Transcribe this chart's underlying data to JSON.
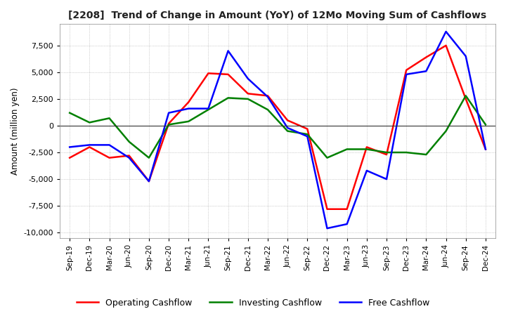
{
  "title": "[2208]  Trend of Change in Amount (YoY) of 12Mo Moving Sum of Cashflows",
  "ylabel": "Amount (million yen)",
  "ylim": [
    -10500,
    9500
  ],
  "yticks": [
    -10000,
    -7500,
    -5000,
    -2500,
    0,
    2500,
    5000,
    7500
  ],
  "background_color": "#ffffff",
  "grid_color": "#aaaaaa",
  "x_labels": [
    "Sep-19",
    "Dec-19",
    "Mar-20",
    "Jun-20",
    "Sep-20",
    "Dec-20",
    "Mar-21",
    "Jun-21",
    "Sep-21",
    "Dec-21",
    "Mar-22",
    "Jun-22",
    "Sep-22",
    "Dec-22",
    "Mar-23",
    "Jun-23",
    "Sep-23",
    "Dec-23",
    "Mar-24",
    "Jun-24",
    "Sep-24",
    "Dec-24"
  ],
  "operating": [
    -3000,
    -2000,
    -3000,
    -2800,
    -5200,
    200,
    2200,
    4900,
    4800,
    3000,
    2800,
    500,
    -300,
    -7800,
    -7800,
    -2000,
    -2700,
    5200,
    6400,
    7500,
    2500,
    -2200
  ],
  "investing": [
    1200,
    300,
    700,
    -1500,
    -3000,
    100,
    400,
    1500,
    2600,
    2500,
    1500,
    -500,
    -800,
    -3000,
    -2200,
    -2200,
    -2500,
    -2500,
    -2700,
    -500,
    2800,
    100
  ],
  "free": [
    -2000,
    -1800,
    -1800,
    -3000,
    -5200,
    1200,
    1600,
    1600,
    7000,
    4400,
    2700,
    -200,
    -1000,
    -9600,
    -9200,
    -4200,
    -5000,
    4800,
    5100,
    8800,
    6500,
    -2200
  ],
  "op_color": "#ff0000",
  "inv_color": "#008000",
  "free_color": "#0000ff",
  "linewidth": 1.8
}
